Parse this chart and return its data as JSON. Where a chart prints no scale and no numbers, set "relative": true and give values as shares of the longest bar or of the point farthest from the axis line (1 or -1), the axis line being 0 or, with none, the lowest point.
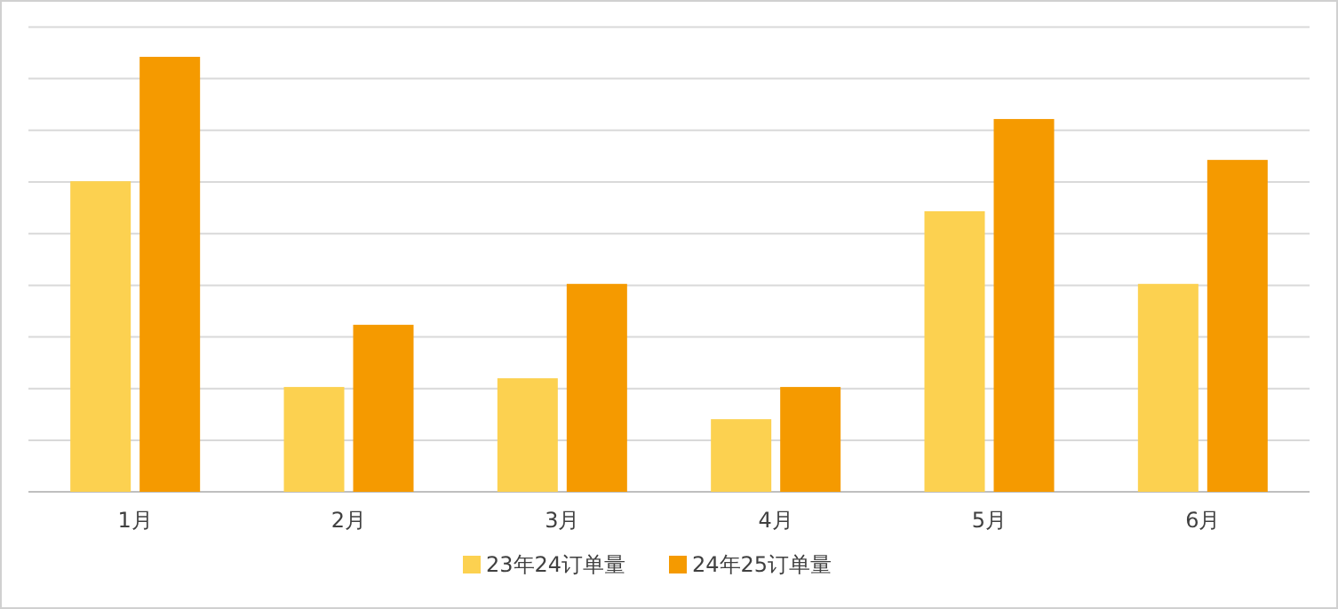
{
  "chart_data": {
    "type": "bar",
    "relative": true,
    "categories": [
      "1月",
      "2月",
      "3月",
      "4月",
      "5月",
      "6月"
    ],
    "series": [
      {
        "name": "23年24订单量",
        "color": "#fcd150",
        "values": [
          0.714,
          0.241,
          0.261,
          0.167,
          0.645,
          0.478
        ]
      },
      {
        "name": "24年25订单量",
        "color": "#f59a00",
        "values": [
          1,
          0.384,
          0.478,
          0.241,
          0.857,
          0.763
        ]
      }
    ],
    "grid": true,
    "legend": "bottom"
  }
}
